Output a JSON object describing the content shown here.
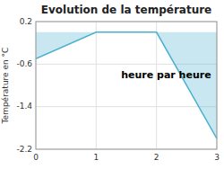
{
  "chart_data": {
    "type": "area",
    "title": "Evolution de la température",
    "ylabel": "Température en °C",
    "annotation": "heure par heure",
    "x": [
      0,
      1,
      2,
      3
    ],
    "values": [
      -0.5,
      0.0,
      0.0,
      -2.0
    ],
    "color": "#4ab0cc",
    "xlim": [
      0,
      3
    ],
    "ylim": [
      -2.2,
      0.2
    ],
    "xticks": [
      0,
      1,
      2,
      3
    ],
    "yticks": [
      0.2,
      -0.6,
      -1.4,
      -2.2
    ],
    "grid": true
  }
}
